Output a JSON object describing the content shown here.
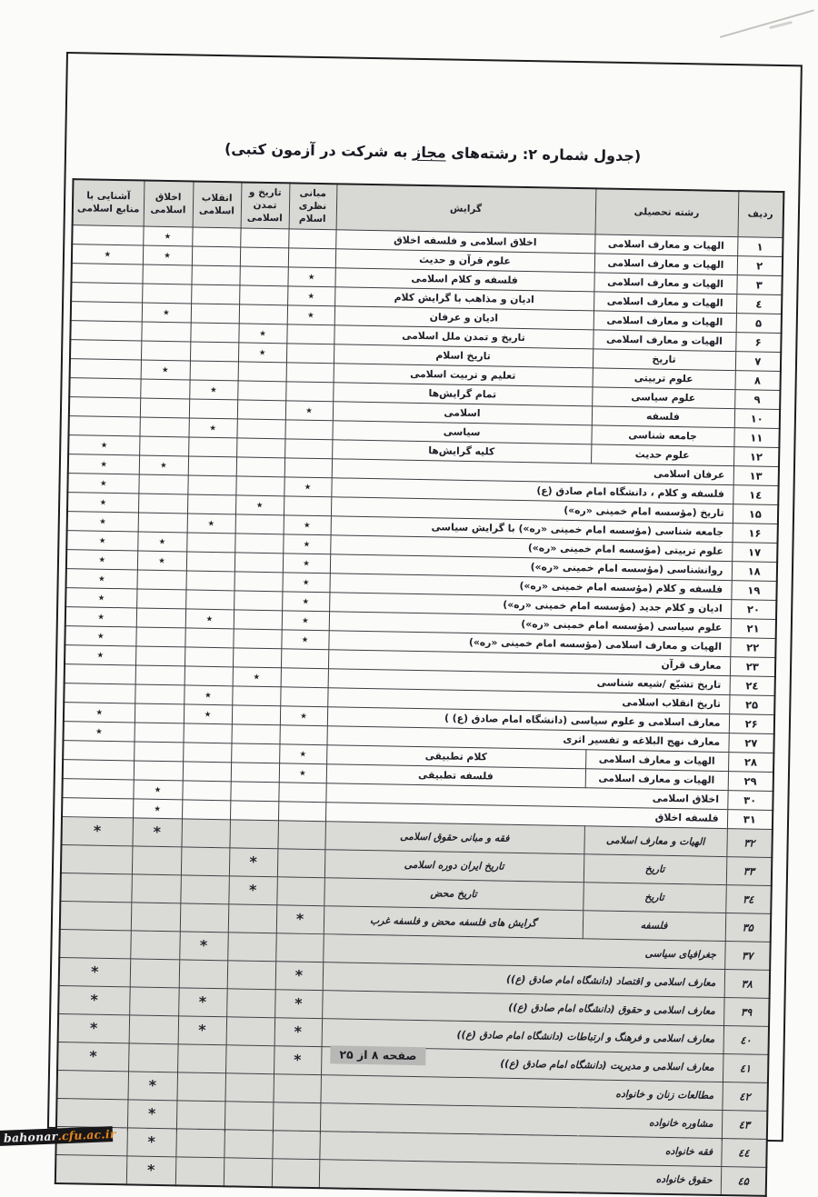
{
  "page": {
    "title_pre": "(جدول شماره ۲: رشته‌های ",
    "title_underlined": "مجاز",
    "title_post": " به شرکت در آزمون کتبی)",
    "footer": "صفحه ۸ از ۲۵",
    "watermark_white": "bahonar",
    "watermark_orange": ".cfu.ac.ir"
  },
  "colors": {
    "header_gray": "#d8d8d4",
    "shade_gray": "#dadad6",
    "footer_highlight_gray": "#b7b7b5",
    "watermark_orange": "#e2851b",
    "watermark_black": "#17171a"
  },
  "table": {
    "headers": {
      "radif": "ردیف",
      "field": "رشته تحصیلی",
      "orientation": "گرایش",
      "mabani": "مبانی نظری اسلام",
      "tarikh": "تاریخ و تمدن اسلامی",
      "enqelab": "انقلاب اسلامی",
      "akhlaq": "اخلاق اسلامی",
      "manabe": "آشنایی با منابع اسلامی"
    },
    "mark_glyph_main": "٭",
    "mark_glyph_shade": "*",
    "mark_columns_order": [
      "mabani",
      "tarikh",
      "enqelab",
      "akhlaq",
      "manabe"
    ],
    "rows": [
      {
        "no": "۱",
        "field": "الهیات و معارف اسلامی",
        "orientation": "اخلاق اسلامی و فلسفه اخلاق",
        "merged": false,
        "shade": false,
        "marks": [
          0,
          0,
          0,
          1,
          0
        ]
      },
      {
        "no": "۲",
        "field": "الهیات و معارف اسلامی",
        "orientation": "علوم قرآن و حدیث",
        "merged": false,
        "shade": false,
        "marks": [
          0,
          0,
          0,
          1,
          1
        ]
      },
      {
        "no": "۳",
        "field": "الهیات و معارف اسلامی",
        "orientation": "فلسفه و کلام اسلامی",
        "merged": false,
        "shade": false,
        "marks": [
          1,
          0,
          0,
          0,
          0
        ]
      },
      {
        "no": "٤",
        "field": "الهیات و معارف اسلامی",
        "orientation": "ادیان و مذاهب با گرایش کلام",
        "merged": false,
        "shade": false,
        "marks": [
          1,
          0,
          0,
          0,
          0
        ]
      },
      {
        "no": "۵",
        "field": "الهیات و معارف اسلامی",
        "orientation": "ادیان و عرفان",
        "merged": false,
        "shade": false,
        "marks": [
          1,
          0,
          0,
          1,
          0
        ]
      },
      {
        "no": "۶",
        "field": "الهیات و معارف اسلامی",
        "orientation": "تاریخ و تمدن ملل اسلامی",
        "merged": false,
        "shade": false,
        "marks": [
          0,
          1,
          0,
          0,
          0
        ]
      },
      {
        "no": "۷",
        "field": "تاریخ",
        "orientation": "تاریخ اسلام",
        "merged": false,
        "shade": false,
        "marks": [
          0,
          1,
          0,
          0,
          0
        ]
      },
      {
        "no": "۸",
        "field": "علوم تربیتی",
        "orientation": "تعلیم و تربیت اسلامی",
        "merged": false,
        "shade": false,
        "marks": [
          0,
          0,
          0,
          1,
          0
        ]
      },
      {
        "no": "۹",
        "field": "علوم سیاسی",
        "orientation": "تمام گرایش‌ها",
        "merged": false,
        "shade": false,
        "marks": [
          0,
          0,
          1,
          0,
          0
        ]
      },
      {
        "no": "۱۰",
        "field": "فلسفه",
        "orientation": "اسلامی",
        "merged": false,
        "shade": false,
        "marks": [
          1,
          0,
          0,
          0,
          0
        ]
      },
      {
        "no": "۱۱",
        "field": "جامعه شناسی",
        "orientation": "سیاسی",
        "merged": false,
        "shade": false,
        "marks": [
          0,
          0,
          1,
          0,
          0
        ]
      },
      {
        "no": "۱۲",
        "field": "علوم حدیث",
        "orientation": "کلیه گرایش‌ها",
        "merged": false,
        "shade": false,
        "marks": [
          0,
          0,
          0,
          0,
          1
        ]
      },
      {
        "no": "۱۳",
        "field": "عرفان اسلامی",
        "orientation": "",
        "merged": true,
        "shade": false,
        "marks": [
          0,
          0,
          0,
          1,
          1
        ]
      },
      {
        "no": "۱٤",
        "field": "فلسفه و کلام ، دانشگاه امام صادق (ع)",
        "orientation": "",
        "merged": true,
        "shade": false,
        "marks": [
          1,
          0,
          0,
          0,
          1
        ]
      },
      {
        "no": "۱۵",
        "field": "تاریخ (مؤسسه امام خمینی «ره»)",
        "orientation": "",
        "merged": true,
        "shade": false,
        "marks": [
          0,
          1,
          0,
          0,
          1
        ]
      },
      {
        "no": "۱۶",
        "field": "جامعه شناسی (مؤسسه امام خمینی «ره») با گرایش سیاسی",
        "orientation": "",
        "merged": true,
        "shade": false,
        "marks": [
          1,
          0,
          1,
          0,
          1
        ]
      },
      {
        "no": "۱۷",
        "field": "علوم تربیتی (مؤسسه امام خمینی «ره»)",
        "orientation": "",
        "merged": true,
        "shade": false,
        "marks": [
          1,
          0,
          0,
          1,
          1
        ]
      },
      {
        "no": "۱۸",
        "field": "روانشناسی (مؤسسه امام خمینی «ره»)",
        "orientation": "",
        "merged": true,
        "shade": false,
        "marks": [
          1,
          0,
          0,
          1,
          1
        ]
      },
      {
        "no": "۱۹",
        "field": "فلسفه و کلام (مؤسسه امام خمینی «ره»)",
        "orientation": "",
        "merged": true,
        "shade": false,
        "marks": [
          1,
          0,
          0,
          0,
          1
        ]
      },
      {
        "no": "۲۰",
        "field": "ادیان و کلام جدید (مؤسسه امام خمینی «ره»)",
        "orientation": "",
        "merged": true,
        "shade": false,
        "marks": [
          1,
          0,
          0,
          0,
          1
        ]
      },
      {
        "no": "۲۱",
        "field": "علوم سیاسی (مؤسسه امام خمینی «ره»)",
        "orientation": "",
        "merged": true,
        "shade": false,
        "marks": [
          1,
          0,
          1,
          0,
          1
        ]
      },
      {
        "no": "۲۲",
        "field": "الهیات و معارف اسلامی (مؤسسه امام خمینی «ره»)",
        "orientation": "",
        "merged": true,
        "shade": false,
        "marks": [
          1,
          0,
          0,
          0,
          1
        ]
      },
      {
        "no": "۲۳",
        "field": "معارف قرآن",
        "orientation": "",
        "merged": true,
        "shade": false,
        "marks": [
          0,
          0,
          0,
          0,
          1
        ]
      },
      {
        "no": "۲٤",
        "field": "تاریخ تشیّع /شیعه شناسی",
        "orientation": "",
        "merged": true,
        "shade": false,
        "marks": [
          0,
          1,
          0,
          0,
          0
        ]
      },
      {
        "no": "۲۵",
        "field": "تاریخ انقلاب اسلامی",
        "orientation": "",
        "merged": true,
        "shade": false,
        "marks": [
          0,
          0,
          1,
          0,
          0
        ]
      },
      {
        "no": "۲۶",
        "field": "معارف اسلامی و علوم سیاسی (دانشگاه امام صادق (ع) )",
        "orientation": "",
        "merged": true,
        "shade": false,
        "marks": [
          1,
          0,
          1,
          0,
          1
        ]
      },
      {
        "no": "۲۷",
        "field": "معارف نهج البلاغه و تفسیر اثری",
        "orientation": "",
        "merged": true,
        "shade": false,
        "marks": [
          0,
          0,
          0,
          0,
          1
        ]
      },
      {
        "no": "۲۸",
        "field": "الهیات و معارف اسلامی",
        "orientation": "کلام تطبیقی",
        "merged": false,
        "shade": false,
        "marks": [
          1,
          0,
          0,
          0,
          0
        ]
      },
      {
        "no": "۲۹",
        "field": "الهیات و معارف اسلامی",
        "orientation": "فلسفه تطبیقی",
        "merged": false,
        "shade": false,
        "marks": [
          1,
          0,
          0,
          0,
          0
        ]
      },
      {
        "no": "۳۰",
        "field": "اخلاق اسلامی",
        "orientation": "",
        "merged": true,
        "shade": false,
        "marks": [
          0,
          0,
          0,
          1,
          0
        ]
      },
      {
        "no": "۳۱",
        "field": "فلسفه اخلاق",
        "orientation": "",
        "merged": true,
        "shade": false,
        "marks": [
          0,
          0,
          0,
          1,
          0
        ]
      },
      {
        "no": "۳۲",
        "field": "الهیات و معارف اسلامی",
        "orientation": "فقه و مبانی حقوق اسلامی",
        "merged": false,
        "shade": true,
        "marks": [
          0,
          0,
          0,
          1,
          1
        ]
      },
      {
        "no": "۳۳",
        "field": "تاریخ",
        "orientation": "تاریخ ایران دوره اسلامی",
        "merged": false,
        "shade": true,
        "marks": [
          0,
          1,
          0,
          0,
          0
        ]
      },
      {
        "no": "۳٤",
        "field": "تاریخ",
        "orientation": "تاریخ محض",
        "merged": false,
        "shade": true,
        "marks": [
          0,
          1,
          0,
          0,
          0
        ]
      },
      {
        "no": "۳۵",
        "field": "فلسفه",
        "orientation": "گرایش های فلسفه محض و فلسفه غرب",
        "merged": false,
        "shade": true,
        "marks": [
          1,
          0,
          0,
          0,
          0
        ]
      },
      {
        "no": "۳۷",
        "field": "جغرافیای سیاسی",
        "orientation": "",
        "merged": true,
        "shade": true,
        "marks": [
          0,
          0,
          1,
          0,
          0
        ]
      },
      {
        "no": "۳۸",
        "field": "معارف اسلامی و اقتصاد (دانشگاه امام صادق (ع))",
        "orientation": "",
        "merged": true,
        "shade": true,
        "marks": [
          1,
          0,
          0,
          0,
          1
        ]
      },
      {
        "no": "۳۹",
        "field": "معارف اسلامی و حقوق (دانشگاه امام صادق (ع))",
        "orientation": "",
        "merged": true,
        "shade": true,
        "marks": [
          1,
          0,
          1,
          0,
          1
        ]
      },
      {
        "no": "٤۰",
        "field": "معارف اسلامی و فرهنگ و ارتباطات (دانشگاه امام صادق (ع))",
        "orientation": "",
        "merged": true,
        "shade": true,
        "marks": [
          1,
          0,
          1,
          0,
          1
        ]
      },
      {
        "no": "٤۱",
        "field": "معارف اسلامی و مدیریت (دانشگاه امام صادق (ع))",
        "orientation": "",
        "merged": true,
        "shade": true,
        "marks": [
          1,
          0,
          0,
          0,
          1
        ]
      },
      {
        "no": "٤۲",
        "field": "مطالعات زنان و خانواده",
        "orientation": "",
        "merged": true,
        "shade": true,
        "marks": [
          0,
          0,
          0,
          1,
          0
        ]
      },
      {
        "no": "٤۳",
        "field": "مشاوره خانواده",
        "orientation": "",
        "merged": true,
        "shade": true,
        "marks": [
          0,
          0,
          0,
          1,
          0
        ]
      },
      {
        "no": "٤٤",
        "field": "فقه خانواده",
        "orientation": "",
        "merged": true,
        "shade": true,
        "marks": [
          0,
          0,
          0,
          1,
          0
        ]
      },
      {
        "no": "٤۵",
        "field": "حقوق خانواده",
        "orientation": "",
        "merged": true,
        "shade": true,
        "marks": [
          0,
          0,
          0,
          1,
          0
        ]
      }
    ]
  }
}
